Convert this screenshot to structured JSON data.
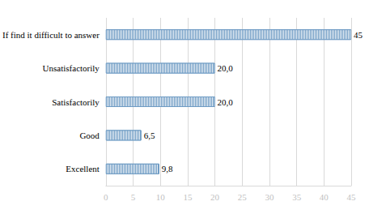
{
  "chart_data": {
    "type": "bar",
    "orientation": "horizontal",
    "categories": [
      "If find it difficult to answer",
      "Unsatisfactorily",
      "Satisfactorily",
      "Good",
      "Excellent"
    ],
    "values": [
      45,
      20.0,
      20.0,
      6.5,
      9.8
    ],
    "value_labels": [
      "45",
      "20,0",
      "20,0",
      "6,5",
      "9,8"
    ],
    "color": "#6f9cc4",
    "xlim": [
      0,
      45
    ],
    "xticks": [
      0,
      5,
      10,
      15,
      20,
      25,
      30,
      35,
      40,
      45
    ],
    "grid": true,
    "data_labels": true
  }
}
